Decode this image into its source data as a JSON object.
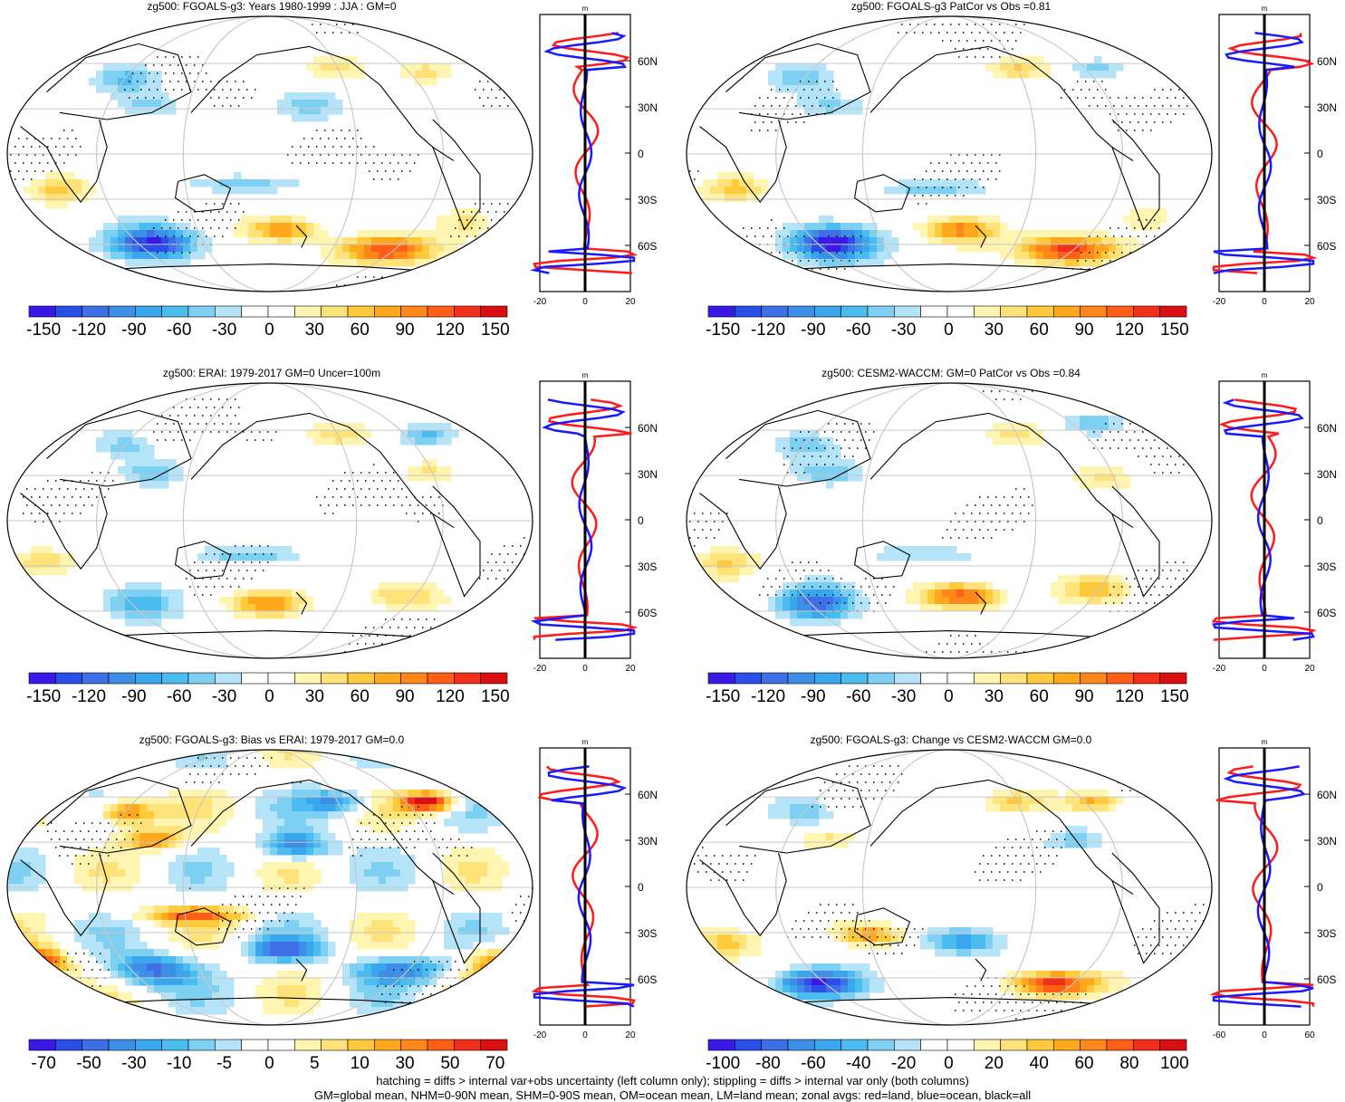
{
  "panels": [
    {
      "title": "zg500: FGOALS-g3: Years 1980-1999 : JJA : GM=0",
      "variant": 0,
      "profile_ticks": [
        "-20",
        "0",
        "20"
      ]
    },
    {
      "title": "zg500: FGOALS-g3 PatCor vs Obs =0.81",
      "variant": 1,
      "profile_ticks": [
        "-20",
        "0",
        "20"
      ]
    },
    {
      "title": "zg500: ERAI: 1979-2017 GM=0 Uncer=100m",
      "variant": 2,
      "profile_ticks": [
        "-20",
        "0",
        "20"
      ]
    },
    {
      "title": "zg500: CESM2-WACCM: GM=0 PatCor vs Obs =0.84",
      "variant": 3,
      "profile_ticks": [
        "-20",
        "0",
        "20"
      ]
    },
    {
      "title": "zg500: FGOALS-g3: Bias vs ERAI: 1979-2017 GM=0.0",
      "variant": 4,
      "profile_ticks": [
        "-20",
        "0",
        "20"
      ]
    },
    {
      "title": "zg500: FGOALS-g3: Change vs CESM2-WACCM GM=0.0",
      "variant": 5,
      "profile_ticks": [
        "-60",
        "0",
        "60"
      ]
    }
  ],
  "colorbars": {
    "full": [
      "-150",
      "-120",
      "-90",
      "-60",
      "-30",
      "0",
      "30",
      "60",
      "90",
      "120",
      "150"
    ],
    "bias": [
      "-70",
      "-50",
      "-30",
      "-10",
      "-5",
      "0",
      "5",
      "10",
      "30",
      "50",
      "70"
    ],
    "change": [
      "-100",
      "-80",
      "-60",
      "-40",
      "-20",
      "0",
      "20",
      "40",
      "60",
      "80",
      "100"
    ]
  },
  "panel_colorbar": [
    "full",
    "full",
    "full",
    "full",
    "bias",
    "change"
  ],
  "profile_unit": "m",
  "lat_labels": [
    "60N",
    "30N",
    "0",
    "30S",
    "60S"
  ],
  "palette": [
    "#3a19e6",
    "#2a4ee8",
    "#3f6fe6",
    "#3c8ee6",
    "#3aa6ec",
    "#4bbcf0",
    "#7dd0f2",
    "#b5e3f8",
    "#ffffff",
    "#ffffff",
    "#fff5b0",
    "#ffe27a",
    "#ffc93c",
    "#ffa81e",
    "#ff861a",
    "#ff5e16",
    "#f0301a",
    "#d90f12"
  ],
  "footer": {
    "line1": "hatching = diffs > internal var+obs uncertainty (left column only); stippling = diffs > internal var only (both columns)",
    "line2": "GM=global mean, NHM=0-90N mean, SHM=0-90S mean, OM=ocean mean, LM=land mean; zonal avgs: red=land, blue=ocean, black=all"
  }
}
